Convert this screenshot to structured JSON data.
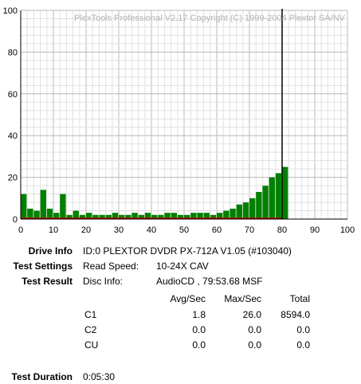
{
  "chart_data": {
    "type": "bar",
    "watermark": "PlexTools Professional V2.17 Copyright (C) 1999-2004 Plextor SA/NV",
    "xlim": [
      0,
      100
    ],
    "ylim": [
      0,
      100
    ],
    "x_ticks": [
      0,
      10,
      20,
      30,
      40,
      50,
      60,
      70,
      80,
      90,
      100
    ],
    "y_ticks": [
      0,
      20,
      40,
      60,
      80,
      100
    ],
    "grid": true,
    "marker_x": 80,
    "series": [
      {
        "name": "C1",
        "color": "#008000",
        "x": [
          0,
          2,
          4,
          6,
          8,
          10,
          12,
          14,
          16,
          18,
          20,
          22,
          24,
          26,
          28,
          30,
          32,
          34,
          36,
          38,
          40,
          42,
          44,
          46,
          48,
          50,
          52,
          54,
          56,
          58,
          60,
          62,
          64,
          66,
          68,
          70,
          72,
          74,
          76,
          78,
          80
        ],
        "values": [
          12,
          5,
          4,
          14,
          5,
          3,
          12,
          2,
          4,
          2,
          3,
          2,
          2,
          2,
          3,
          2,
          2,
          3,
          2,
          3,
          2,
          2,
          3,
          3,
          2,
          2,
          3,
          3,
          3,
          2,
          3,
          4,
          5,
          7,
          8,
          10,
          13,
          16,
          20,
          22,
          25
        ]
      },
      {
        "name": "C2",
        "color": "#c00000",
        "x": [
          0,
          80
        ],
        "values": [
          0,
          0
        ]
      }
    ]
  },
  "info": {
    "drive_label": "Drive Info",
    "drive_value": "ID:0 PLEXTOR DVDR PX-712A V1.05 (#103040)",
    "settings_label": "Test Settings",
    "settings_key": "Read Speed:",
    "settings_value": "10-24X CAV",
    "result_label": "Test Result",
    "result_key": "Disc Info:",
    "result_value": "AudioCD , 79:53.68 MSF",
    "duration_label": "Test Duration",
    "duration_value": "0:05:30"
  },
  "table": {
    "headers": [
      "Avg/Sec",
      "Max/Sec",
      "Total"
    ],
    "rows": [
      {
        "name": "C1",
        "avg": "1.8",
        "max": "26.0",
        "total": "8594.0"
      },
      {
        "name": "C2",
        "avg": "0.0",
        "max": "0.0",
        "total": "0.0"
      },
      {
        "name": "CU",
        "avg": "0.0",
        "max": "0.0",
        "total": "0.0"
      }
    ]
  }
}
